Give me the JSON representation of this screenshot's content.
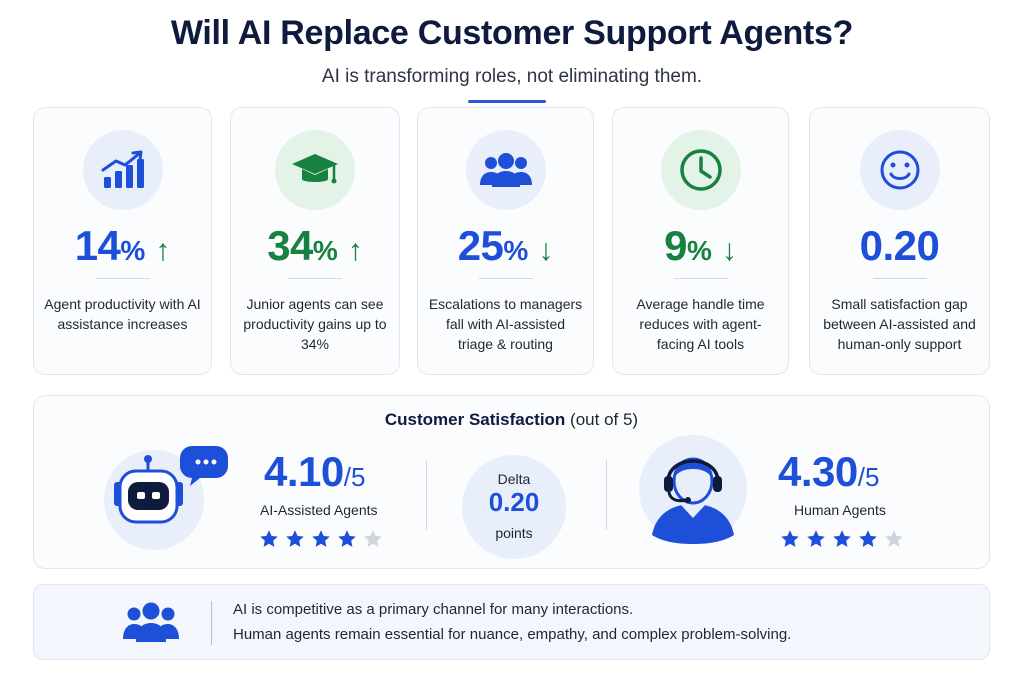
{
  "header": {
    "title": "Will AI Replace Customer Support Agents?",
    "subtitle": "AI is transforming roles, not eliminating them."
  },
  "colors": {
    "blue": "#1d4fd8",
    "green": "#17813f",
    "navy": "#0f1b3d",
    "blue_tint": "#e9eefb",
    "green_tint": "#e3f3e8"
  },
  "stats": [
    {
      "icon": "bar-chart-up-icon",
      "value": "14",
      "unit": "%",
      "arrow": "↑",
      "color": "blue",
      "description": "Agent productivity with AI assistance increases"
    },
    {
      "icon": "graduation-cap-icon",
      "value": "34",
      "unit": "%",
      "arrow": "↑",
      "color": "green",
      "description": "Junior agents can see productivity gains up to 34%"
    },
    {
      "icon": "people-group-icon",
      "value": "25",
      "unit": "%",
      "arrow": "↓",
      "color": "blue",
      "description": "Escalations to managers fall with AI-assisted triage & routing"
    },
    {
      "icon": "clock-icon",
      "value": "9",
      "unit": "%",
      "arrow": "↓",
      "color": "green",
      "description": "Average handle time reduces with agent-facing AI tools"
    },
    {
      "icon": "smiley-face-icon",
      "value": "0.20",
      "unit": "",
      "arrow": "",
      "color": "blue",
      "description": "Small satisfaction gap between AI-assisted and human-only support"
    }
  ],
  "satisfaction": {
    "title_strong": "Customer Satisfaction",
    "title_rest": " (out of 5)",
    "ai": {
      "score": "4.10",
      "out_of": "/5",
      "label": "AI-Assisted Agents",
      "stars": 4,
      "max_stars": 5,
      "icon": "robot-chat-icon"
    },
    "delta": {
      "label": "Delta",
      "value": "0.20",
      "unit": "points"
    },
    "human": {
      "score": "4.30",
      "out_of": "/5",
      "label": "Human Agents",
      "stars": 4,
      "max_stars": 5,
      "icon": "headset-agent-icon"
    }
  },
  "note": {
    "icon": "people-group-icon",
    "line1": "AI is competitive as a primary channel for many interactions.",
    "line2": "Human agents remain essential for nuance, empathy, and complex problem-solving."
  }
}
